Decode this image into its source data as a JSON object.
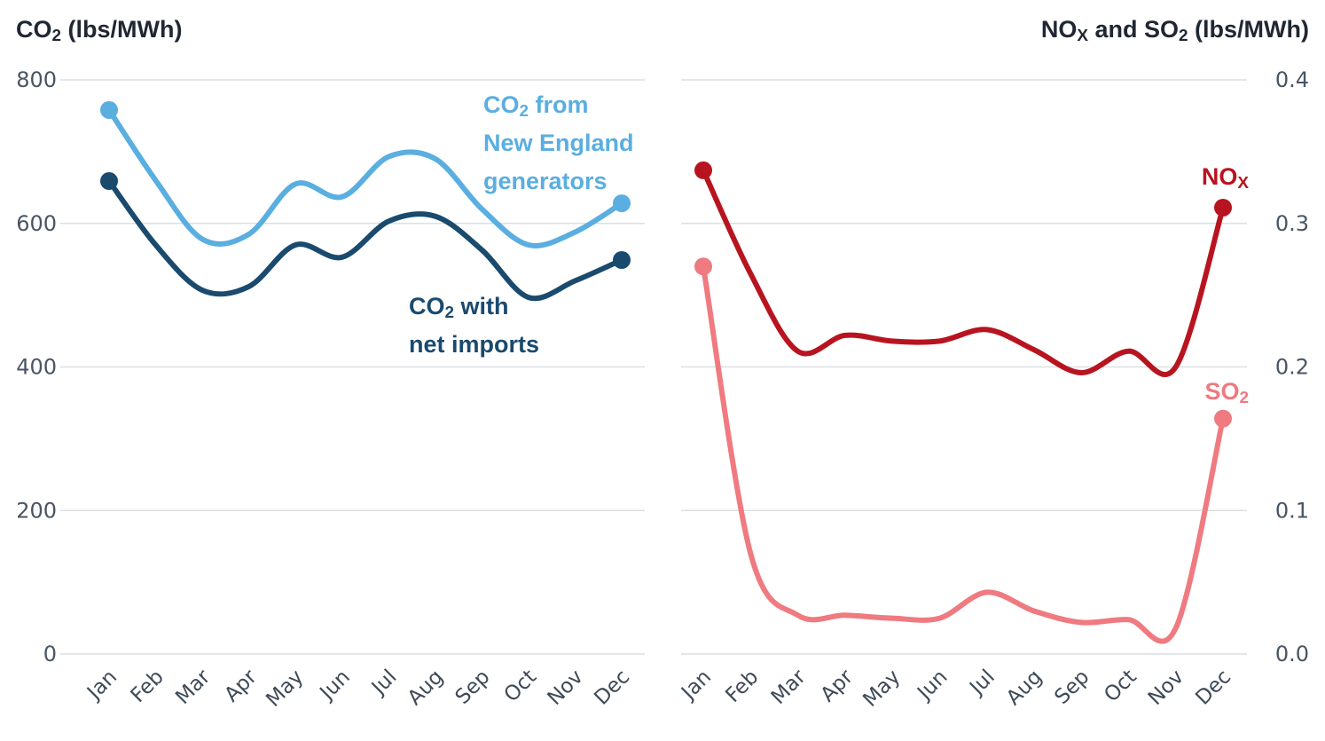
{
  "chart_data": [
    {
      "type": "line",
      "title": "",
      "ylabel": "CO₂ (lbs/MWh)",
      "ylim": [
        0,
        800
      ],
      "yticks": [
        0,
        200,
        400,
        600,
        800
      ],
      "ytick_labels": [
        "0",
        "200",
        "400",
        "600",
        "800"
      ],
      "grid": true,
      "categories": [
        "Jan",
        "Feb",
        "Mar",
        "Apr",
        "May",
        "Jun",
        "Jul",
        "Aug",
        "Sep",
        "Oct",
        "Nov",
        "Dec"
      ],
      "series": [
        {
          "name": "CO₂ from New England generators",
          "annotation": [
            "CO₂ from",
            "New England",
            "generators"
          ],
          "color": "#5aaee0",
          "values": [
            758,
            660,
            578,
            585,
            655,
            637,
            693,
            690,
            620,
            570,
            588,
            628
          ]
        },
        {
          "name": "CO₂ with net imports",
          "annotation": [
            "CO₂ with",
            "net imports"
          ],
          "color": "#1a4a6e",
          "values": [
            659,
            570,
            507,
            512,
            570,
            553,
            603,
            610,
            563,
            497,
            520,
            549
          ]
        }
      ]
    },
    {
      "type": "line",
      "title": "",
      "ylabel": "NOₓ and SO₂ (lbs/MWh)",
      "ylim": [
        0,
        0.4
      ],
      "yticks": [
        0,
        0.1,
        0.2,
        0.3,
        0.4
      ],
      "ytick_labels": [
        "0.0",
        "0.1",
        "0.2",
        "0.3",
        "0.4"
      ],
      "grid": true,
      "categories": [
        "Jan",
        "Feb",
        "Mar",
        "Apr",
        "May",
        "Jun",
        "Jul",
        "Aug",
        "Sep",
        "Oct",
        "Nov",
        "Dec"
      ],
      "series": [
        {
          "name": "NOₓ",
          "annotation": [
            "NOₓ"
          ],
          "color": "#b8141f",
          "values": [
            0.337,
            0.265,
            0.211,
            0.222,
            0.218,
            0.218,
            0.226,
            0.212,
            0.196,
            0.211,
            0.2,
            0.311
          ]
        },
        {
          "name": "SO₂",
          "annotation": [
            "SO₂"
          ],
          "color": "#ef7a80",
          "values": [
            0.27,
            0.07,
            0.027,
            0.027,
            0.025,
            0.025,
            0.043,
            0.03,
            0.022,
            0.024,
            0.018,
            0.164
          ]
        }
      ]
    }
  ]
}
